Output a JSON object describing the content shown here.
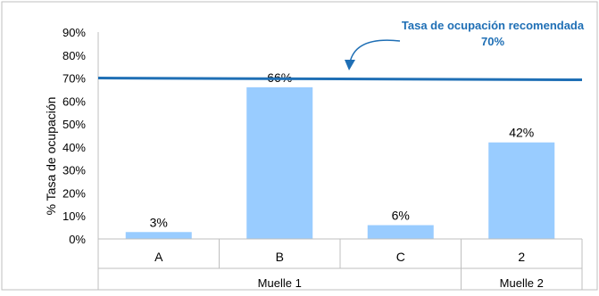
{
  "chart_data": {
    "type": "bar",
    "title": "",
    "ylabel": "% Tasa de ocupación",
    "xlabel": "",
    "ylim": [
      0,
      90
    ],
    "yticks": [
      "0%",
      "10%",
      "20%",
      "30%",
      "40%",
      "50%",
      "60%",
      "70%",
      "80%",
      "90%"
    ],
    "categories": [
      "A",
      "B",
      "C",
      "2"
    ],
    "groups": [
      {
        "label": "Muelle 1",
        "members": [
          "A",
          "B",
          "C"
        ]
      },
      {
        "label": "Muelle 2",
        "members": [
          "2"
        ]
      }
    ],
    "values": [
      3,
      66,
      6,
      42
    ],
    "data_labels": [
      "3%",
      "66%",
      "6%",
      "42%"
    ],
    "bar_color": "#99ccff",
    "reference_line": {
      "value": 70,
      "color": "#1f6fb5",
      "label": "Tasa de ocupación recomendada",
      "value_label": "70%",
      "label_color": "#1f6fb5"
    },
    "grid": false,
    "legend": "none"
  }
}
